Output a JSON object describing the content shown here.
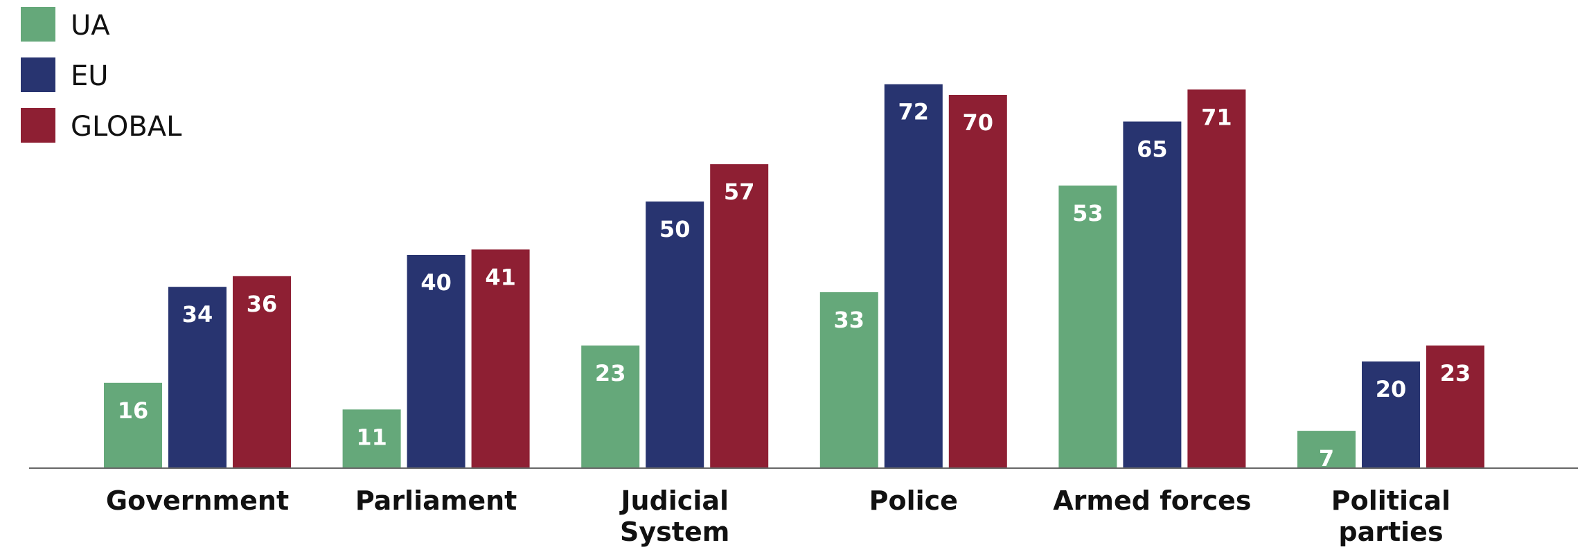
{
  "chart_data": {
    "type": "bar",
    "title": "",
    "xlabel": "",
    "ylabel": "",
    "ylim": [
      0,
      80
    ],
    "grid": false,
    "legend_position": "top-left",
    "categories": [
      [
        "Government"
      ],
      [
        "Parliament"
      ],
      [
        "Judicial",
        "System"
      ],
      [
        "Police"
      ],
      [
        "Armed forces"
      ],
      [
        "Political",
        "parties"
      ]
    ],
    "series": [
      {
        "name": "UA",
        "color": "#65a87a",
        "values": [
          16,
          11,
          23,
          33,
          53,
          7
        ]
      },
      {
        "name": "EU",
        "color": "#283470",
        "values": [
          34,
          40,
          50,
          72,
          65,
          20
        ]
      },
      {
        "name": "GLOBAL",
        "color": "#8e1f33",
        "values": [
          36,
          41,
          57,
          70,
          71,
          23
        ]
      }
    ]
  }
}
